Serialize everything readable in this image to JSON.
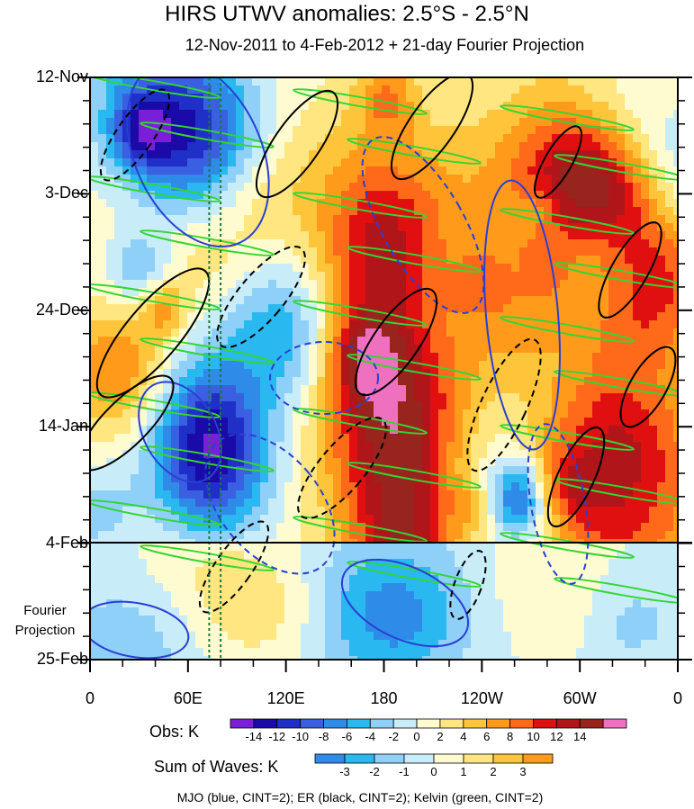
{
  "title": "HIRS UTWV anomalies: 2.5°S - 2.5°N",
  "subtitle": "12-Nov-2011 to 4-Feb-2012 + 21-day Fourier Projection",
  "fourier_label_line1": "Fourier",
  "fourier_label_line2": "Projection",
  "obs_label": "Obs: K",
  "sum_label": "Sum of Waves: K",
  "footer": "MJO (blue, CINT=2); ER (black, CINT=2); Kelvin (green, CINT=2)",
  "colors": {
    "mjo": "#2a3fd4",
    "er": "#000000",
    "kelvin": "#33d633",
    "reference_lines": "#1a7a3a"
  },
  "chart_data": {
    "type": "heatmap",
    "x_axis": {
      "ticks": [
        "0",
        "60E",
        "120E",
        "180",
        "120W",
        "60W",
        "0"
      ],
      "range_deg_east": [
        0,
        360
      ]
    },
    "y_axis": {
      "ticks": [
        "12-Nov",
        "3-Dec",
        "24-Dec",
        "14-Jan",
        "4-Feb",
        "25-Feb"
      ],
      "direction": "time increases downward",
      "observation_end": "4-Feb",
      "projection_end": "25-Feb"
    },
    "reference_longitudes_deg_east": [
      73,
      80
    ],
    "obs_colorbar": {
      "unit": "K",
      "labels": [
        "-14",
        "-12",
        "-10",
        "-8",
        "-6",
        "-4",
        "-2",
        "0",
        "2",
        "4",
        "6",
        "8",
        "10",
        "12",
        "14"
      ],
      "colors": [
        "#7a1fd8",
        "#1a0aa8",
        "#1f2fc8",
        "#3a5fe0",
        "#2f8be8",
        "#2ab8f0",
        "#8fd0f8",
        "#c8ecf8",
        "#fffbd0",
        "#ffe680",
        "#ffc53a",
        "#ff9a1a",
        "#ff6a1a",
        "#e01010",
        "#b0151a",
        "#98241e",
        "#f070c0"
      ]
    },
    "waves_colorbar": {
      "unit": "K",
      "labels": [
        "-3",
        "-2",
        "-1",
        "0",
        "1",
        "2",
        "3"
      ],
      "colors": [
        "#2f8be8",
        "#2ab8f0",
        "#8fd0f8",
        "#c8ecf8",
        "#fffbd0",
        "#ffe680",
        "#ffc53a",
        "#ff9a1a"
      ]
    },
    "overlays": [
      {
        "name": "MJO",
        "color": "blue",
        "cint": 2
      },
      {
        "name": "ER",
        "color": "black",
        "cint": 2
      },
      {
        "name": "Kelvin",
        "color": "green",
        "cint": 2
      }
    ]
  }
}
